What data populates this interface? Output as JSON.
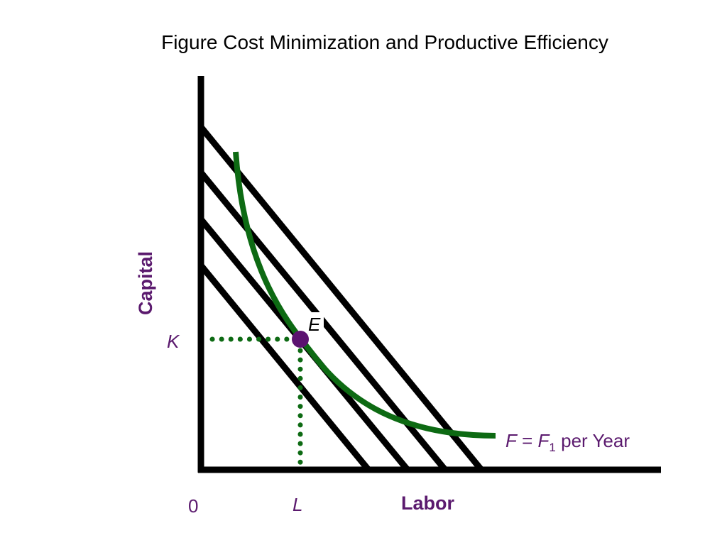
{
  "title": "Figure Cost Minimization and Productive Efficiency",
  "axes": {
    "y_label": "Capital",
    "x_label": "Labor",
    "origin_label": "0"
  },
  "point": {
    "label": "E",
    "k_label": "K",
    "l_label": "L"
  },
  "curve": {
    "label_var": "F",
    "label_eq": " = ",
    "label_var2": "F",
    "label_sub": "1",
    "label_suffix": " per Year"
  },
  "colors": {
    "label": "#5b1a6e",
    "curve": "#0d6a13",
    "point": "#5b1270",
    "axis": "#000000"
  },
  "isocost_line_count": 4
}
